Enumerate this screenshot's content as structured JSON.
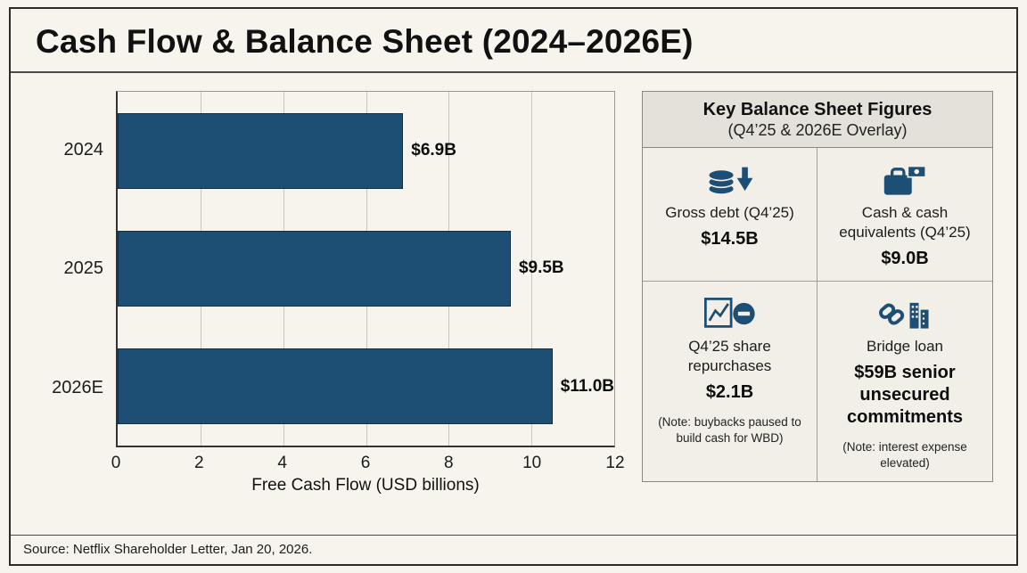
{
  "title": "Cash Flow & Balance Sheet (2024–2026E)",
  "chart_data": {
    "type": "bar",
    "orientation": "horizontal",
    "title": "Cash Flow & Balance Sheet (2024–2026E)",
    "categories": [
      "2024",
      "2025",
      "2026E"
    ],
    "values": [
      6.9,
      9.5,
      11.0
    ],
    "value_labels": [
      "$6.9B",
      "$9.5B",
      "$11.0B"
    ],
    "xlabel": "Free Cash Flow (USD billions)",
    "ylabel": "",
    "xlim": [
      0,
      12
    ],
    "xticks": [
      0,
      2,
      4,
      6,
      8,
      10,
      12
    ],
    "grid": true,
    "bar_color": "#1d4e74"
  },
  "panel": {
    "title": "Key Balance Sheet Figures",
    "subtitle": "(Q4’25 & 2026E Overlay)",
    "cells": [
      {
        "icon": "coins-down-icon",
        "label": "Gross debt (Q4’25)",
        "value": "$14.5B"
      },
      {
        "icon": "briefcase-cash-icon",
        "label": "Cash & cash equivalents (Q4’25)",
        "value": "$9.0B"
      },
      {
        "icon": "chart-minus-icon",
        "label": "Q4’25 share repurchases",
        "value": "$2.1B",
        "note": "(Note: buybacks paused to build cash for WBD)"
      },
      {
        "icon": "link-buildings-icon",
        "label": "Bridge loan",
        "value": "$59B senior unsecured commitments",
        "note": "(Note: interest expense elevated)"
      }
    ]
  },
  "footer": {
    "source": "Source: Netflix Shareholder Letter, Jan 20, 2026."
  },
  "colors": {
    "bar": "#1d4e74",
    "background": "#f6f4ed",
    "panel_header": "#e3e1d9"
  }
}
